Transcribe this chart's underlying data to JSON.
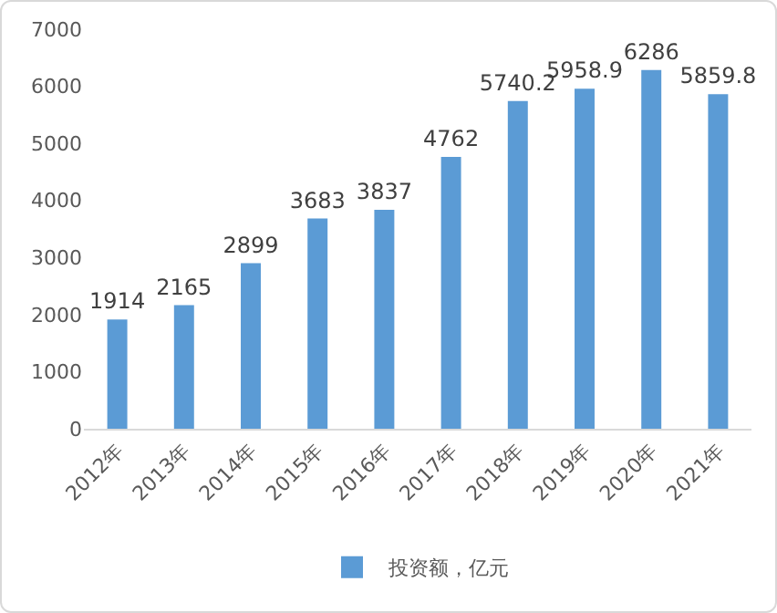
{
  "chart_data": {
    "type": "bar",
    "categories": [
      "2012年",
      "2013年",
      "2014年",
      "2015年",
      "2016年",
      "2017年",
      "2018年",
      "2019年",
      "2020年",
      "2021年"
    ],
    "series": [
      {
        "name": "投资额，亿元",
        "color": "#5b9bd5",
        "values": [
          1914,
          2165,
          2899,
          3683,
          3837,
          4762,
          5740.2,
          5958.9,
          6286,
          5859.8
        ]
      }
    ],
    "ylim": [
      0,
      7000
    ],
    "yticks": [
      0,
      1000,
      2000,
      3000,
      4000,
      5000,
      6000,
      7000
    ],
    "grid": false,
    "legend": "bottom",
    "data_labels": true
  }
}
